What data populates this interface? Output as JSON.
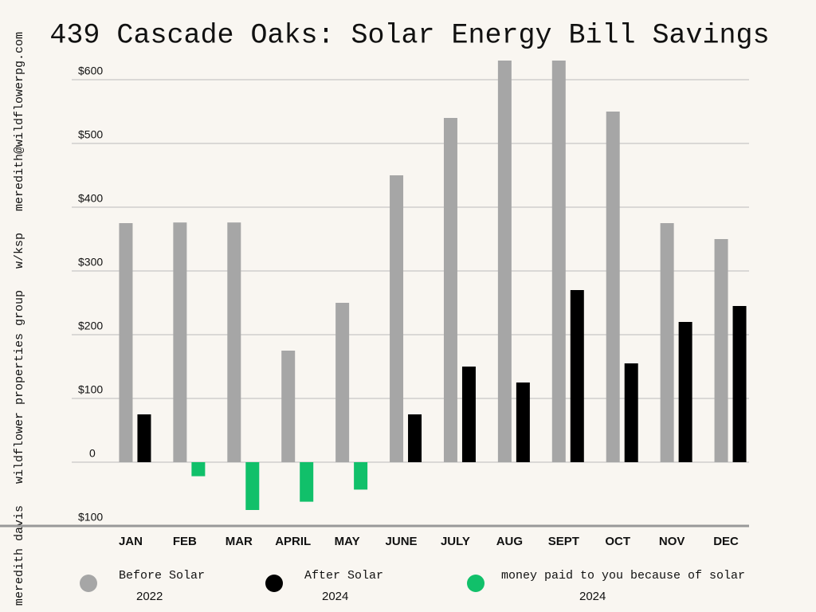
{
  "chart_data": {
    "type": "bar",
    "title": "439 Cascade Oaks: Solar Energy Bill Savings",
    "side_note": "meredith davis   wildflower properties group   w/ksp   meredith@wildflowerpg.com",
    "categories": [
      "JAN",
      "FEB",
      "MAR",
      "APRIL",
      "MAY",
      "JUNE",
      "JULY",
      "AUG",
      "SEPT",
      "OCT",
      "NOV",
      "DEC"
    ],
    "series": [
      {
        "name": "Before Solar",
        "year": "2022",
        "color": "#a6a6a6",
        "values": [
          375,
          376,
          376,
          175,
          250,
          450,
          540,
          630,
          630,
          550,
          375,
          350
        ]
      },
      {
        "name": "After Solar",
        "year": "2024",
        "color": "#000000",
        "values": [
          75,
          null,
          null,
          null,
          null,
          75,
          150,
          125,
          270,
          155,
          220,
          245
        ]
      },
      {
        "name": "money paid to you because of solar",
        "year": "2024",
        "color": "#11c06a",
        "values": [
          null,
          -22,
          -75,
          -62,
          -43,
          null,
          null,
          null,
          null,
          null,
          null,
          null
        ]
      }
    ],
    "ylim": [
      -100,
      650
    ],
    "yticks": [
      {
        "value": -100,
        "label": "$100"
      },
      0,
      {
        "value": 100,
        "label": "$100"
      },
      {
        "value": 200,
        "label": "$200"
      },
      {
        "value": 300,
        "label": "$300"
      },
      {
        "value": 400,
        "label": "$400"
      },
      {
        "value": 500,
        "label": "$500"
      },
      {
        "value": 600,
        "label": "$600"
      }
    ],
    "grid": true
  }
}
